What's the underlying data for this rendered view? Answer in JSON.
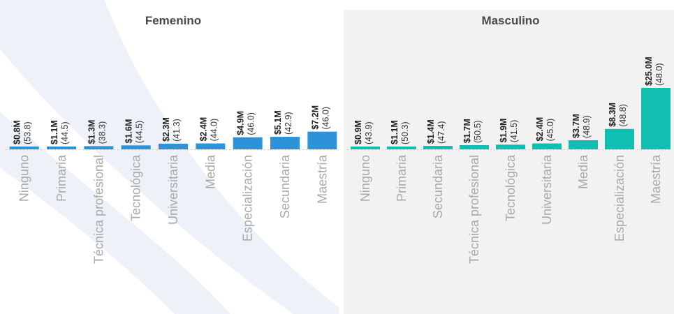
{
  "colors": {
    "female_bar": "#2d92d8",
    "male_bar": "#10bfb0",
    "male_panel_bg": "#f2f2f2",
    "axis_text": "#a9a9a9"
  },
  "chart_data": [
    {
      "type": "bar",
      "title": "Femenino",
      "categories": [
        "Ninguno",
        "Primaria",
        "Técnica profesional",
        "Tecnológica",
        "Universitaria",
        "Media",
        "Especialización",
        "Secundaria",
        "Maestría"
      ],
      "values": [
        0.8,
        1.1,
        1.3,
        1.6,
        2.3,
        2.4,
        4.9,
        5.1,
        7.2
      ],
      "value_labels": [
        "$0.8M",
        "$1.1M",
        "$1.3M",
        "$1.6M",
        "$2.3M",
        "$2.4M",
        "$4.9M",
        "$5.1M",
        "$7.2M"
      ],
      "secondary_labels": [
        "(53.8)",
        "(44.5)",
        "(38.3)",
        "(44.5)",
        "(41.3)",
        "(44.0)",
        "(46.0)",
        "(42.9)",
        "(46.0)"
      ],
      "secondary_values": [
        53.8,
        44.5,
        38.3,
        44.5,
        41.3,
        44.0,
        46.0,
        42.9,
        46.0
      ],
      "ylim": [
        0,
        25.0
      ],
      "color": "#2d92d8"
    },
    {
      "type": "bar",
      "title": "Masculino",
      "categories": [
        "Ninguno",
        "Primaria",
        "Secundaria",
        "Técnica profesional",
        "Tecnológica",
        "Universitaria",
        "Media",
        "Especialización",
        "Maestría"
      ],
      "values": [
        0.9,
        1.1,
        1.4,
        1.7,
        1.9,
        2.4,
        3.7,
        8.3,
        25.0
      ],
      "value_labels": [
        "$0.9M",
        "$1.1M",
        "$1.4M",
        "$1.7M",
        "$1.9M",
        "$2.4M",
        "$3.7M",
        "$8.3M",
        "$25.0M"
      ],
      "secondary_labels": [
        "(43.9)",
        "(50.3)",
        "(47.4)",
        "(50.5)",
        "(41.5)",
        "(45.0)",
        "(48.9)",
        "(48.8)",
        "(48.0)"
      ],
      "secondary_values": [
        43.9,
        50.3,
        47.4,
        50.5,
        41.5,
        45.0,
        48.9,
        48.8,
        48.0
      ],
      "ylim": [
        0,
        25.0
      ],
      "color": "#10bfb0"
    }
  ]
}
